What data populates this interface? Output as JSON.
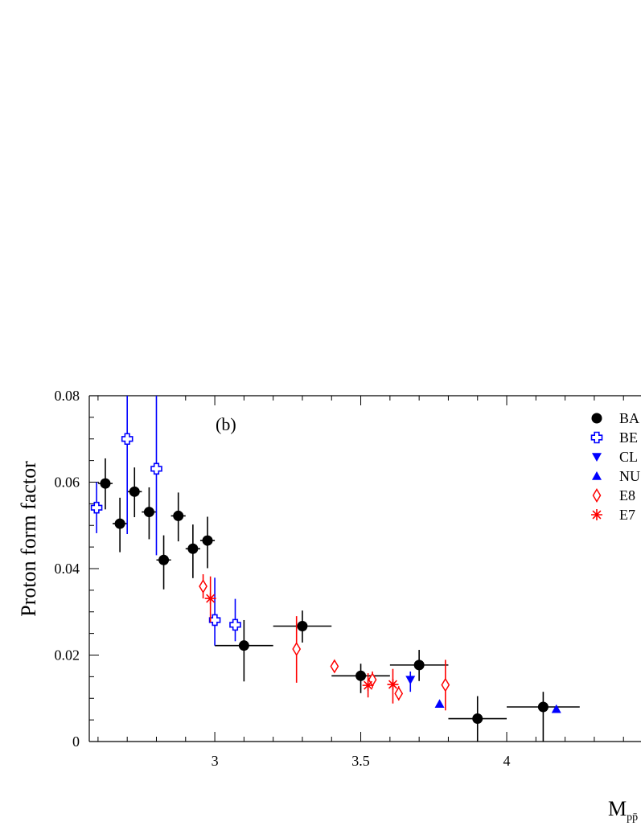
{
  "chart_data": {
    "type": "scatter",
    "panel_label": "(b)",
    "ylabel": "Proton form factor",
    "xlabel_main": "M",
    "xlabel_sub": "pp̄",
    "xlim": [
      2.57,
      4.46
    ],
    "ylim": [
      0,
      0.08
    ],
    "x_ticks": [
      {
        "value": 3,
        "label": "3"
      },
      {
        "value": 3.5,
        "label": "3.5"
      },
      {
        "value": 4,
        "label": "4"
      }
    ],
    "y_ticks": [
      {
        "value": 0,
        "label": "0"
      },
      {
        "value": 0.02,
        "label": "0.02"
      },
      {
        "value": 0.04,
        "label": "0.04"
      },
      {
        "value": 0.06,
        "label": "0.06"
      },
      {
        "value": 0.08,
        "label": "0.08"
      }
    ],
    "grid": false,
    "legend_position": "top-right",
    "series": [
      {
        "name": "BA",
        "marker": "circle",
        "color": "#000000",
        "points": [
          {
            "x": 2.625,
            "y": 0.0597,
            "xerr": 0.025,
            "ylo": 0.0537,
            "yhi": 0.0655
          },
          {
            "x": 2.675,
            "y": 0.0504,
            "xerr": 0.025,
            "ylo": 0.0438,
            "yhi": 0.0564
          },
          {
            "x": 2.725,
            "y": 0.0578,
            "xerr": 0.025,
            "ylo": 0.0519,
            "yhi": 0.0634
          },
          {
            "x": 2.775,
            "y": 0.0531,
            "xerr": 0.025,
            "ylo": 0.0468,
            "yhi": 0.0588
          },
          {
            "x": 2.825,
            "y": 0.042,
            "xerr": 0.025,
            "ylo": 0.0352,
            "yhi": 0.0477
          },
          {
            "x": 2.875,
            "y": 0.0522,
            "xerr": 0.025,
            "ylo": 0.0463,
            "yhi": 0.0576
          },
          {
            "x": 2.925,
            "y": 0.0446,
            "xerr": 0.025,
            "ylo": 0.0378,
            "yhi": 0.0502
          },
          {
            "x": 2.975,
            "y": 0.0465,
            "xerr": 0.025,
            "ylo": 0.0401,
            "yhi": 0.052
          },
          {
            "x": 3.1,
            "y": 0.0222,
            "xerr": 0.1,
            "ylo": 0.0139,
            "yhi": 0.0281
          },
          {
            "x": 3.3,
            "y": 0.0267,
            "xerr": 0.1,
            "ylo": 0.0229,
            "yhi": 0.0303
          },
          {
            "x": 3.5,
            "y": 0.0152,
            "xerr": 0.1,
            "ylo": 0.0112,
            "yhi": 0.018
          },
          {
            "x": 3.7,
            "y": 0.0177,
            "xerr": 0.1,
            "ylo": 0.014,
            "yhi": 0.0212
          },
          {
            "x": 3.9,
            "y": 0.0053,
            "xerr": 0.1,
            "ylo": 0.0,
            "yhi": 0.0105
          },
          {
            "x": 4.125,
            "y": 0.008,
            "xerr": 0.125,
            "ylo": 0.0,
            "yhi": 0.0115
          }
        ]
      },
      {
        "name": "BE",
        "marker": "open-cross",
        "color": "#0000ff",
        "points": [
          {
            "x": 2.595,
            "y": 0.0541,
            "ylo": 0.0482,
            "yhi": 0.06
          },
          {
            "x": 2.7,
            "y": 0.07,
            "ylo": 0.048,
            "yhi": 0.08
          },
          {
            "x": 2.8,
            "y": 0.0631,
            "ylo": 0.0431,
            "yhi": 0.08
          },
          {
            "x": 3.0,
            "y": 0.0281,
            "ylo": 0.0222,
            "yhi": 0.0379
          },
          {
            "x": 3.07,
            "y": 0.027,
            "ylo": 0.0232,
            "yhi": 0.033
          }
        ]
      },
      {
        "name": "CL",
        "marker": "triangle-down",
        "color": "#0000ff",
        "points": [
          {
            "x": 3.67,
            "y": 0.0143,
            "ylo": 0.0115,
            "yhi": 0.0162
          }
        ]
      },
      {
        "name": "NU",
        "marker": "triangle-up",
        "color": "#0000ff",
        "points": [
          {
            "x": 3.77,
            "y": 0.0087
          },
          {
            "x": 4.17,
            "y": 0.0075
          }
        ]
      },
      {
        "name": "E8",
        "marker": "open-diamond",
        "color": "#ff0000",
        "points": [
          {
            "x": 2.96,
            "y": 0.0359,
            "ylo": 0.0331,
            "yhi": 0.0387
          },
          {
            "x": 3.28,
            "y": 0.0214,
            "ylo": 0.0136,
            "yhi": 0.029
          },
          {
            "x": 3.41,
            "y": 0.0174,
            "ylo": 0.0166,
            "yhi": 0.0182
          },
          {
            "x": 3.54,
            "y": 0.0143,
            "ylo": 0.0124,
            "yhi": 0.0162
          },
          {
            "x": 3.63,
            "y": 0.0111,
            "ylo": 0.0095,
            "yhi": 0.0128
          },
          {
            "x": 3.79,
            "y": 0.0131,
            "ylo": 0.0072,
            "yhi": 0.0189
          }
        ]
      },
      {
        "name": "E7",
        "marker": "asterisk",
        "color": "#ff0000",
        "points": [
          {
            "x": 2.985,
            "y": 0.0331,
            "ylo": 0.0276,
            "yhi": 0.0382
          },
          {
            "x": 3.525,
            "y": 0.013,
            "ylo": 0.0102,
            "yhi": 0.0158
          },
          {
            "x": 3.61,
            "y": 0.0132,
            "ylo": 0.0088,
            "yhi": 0.0168
          }
        ]
      }
    ]
  }
}
